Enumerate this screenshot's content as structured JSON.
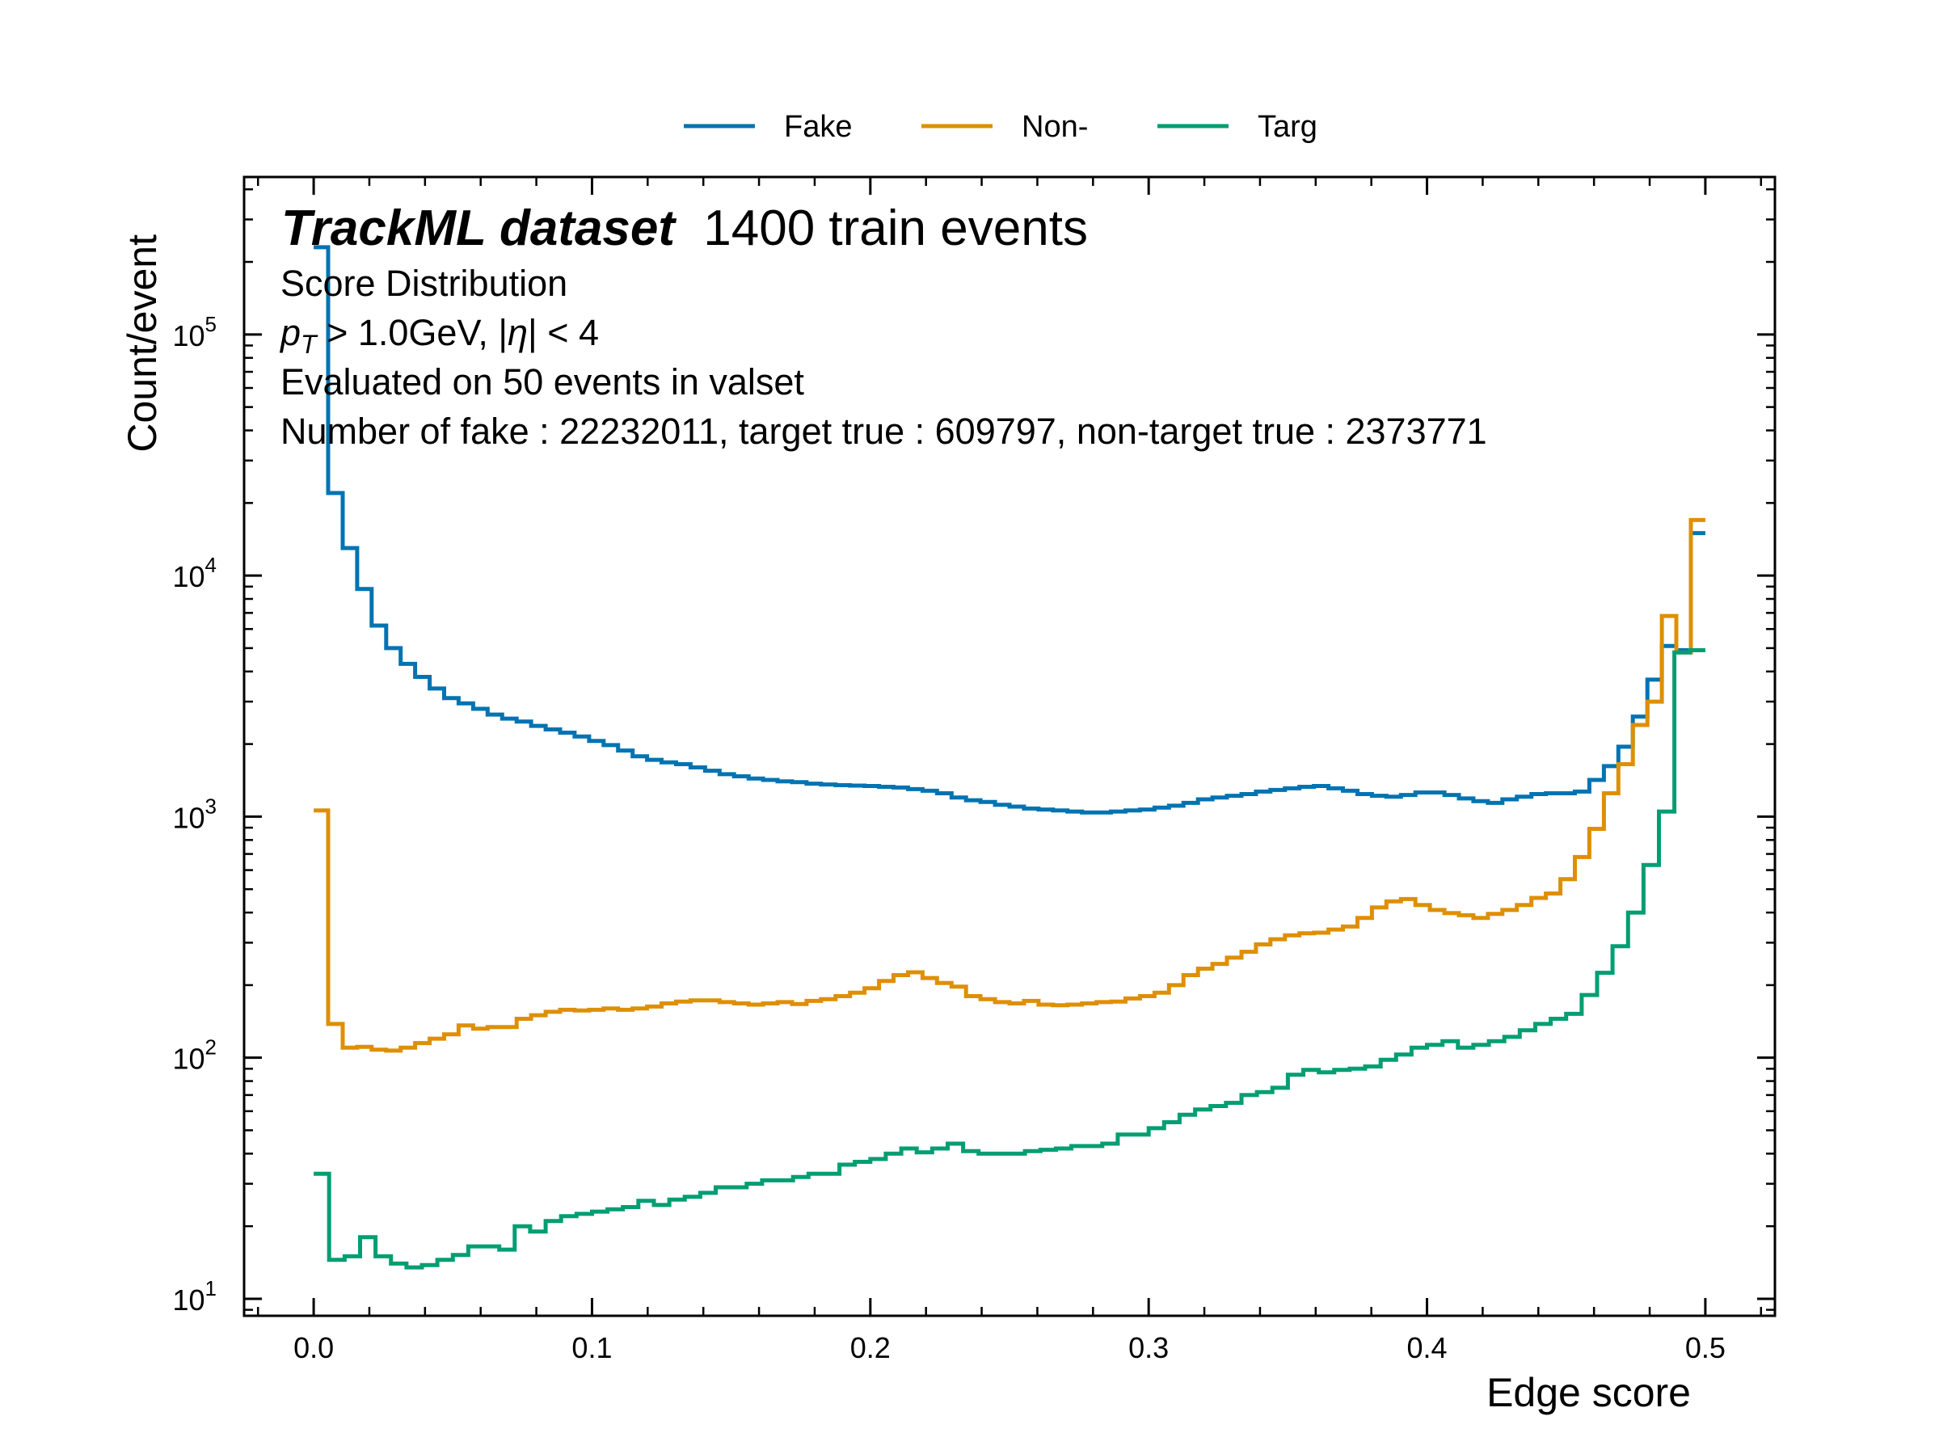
{
  "chart_data": {
    "type": "line",
    "title": "",
    "xlabel": "Edge score",
    "ylabel": "Count/event",
    "xlim": [
      -0.025,
      0.525
    ],
    "ylim": [
      8.5,
      450000
    ],
    "yscale": "log",
    "grid": false,
    "legend_position": "top-center",
    "x_ticks": [
      0.0,
      0.1,
      0.2,
      0.3,
      0.4,
      0.5
    ],
    "x_tick_labels": [
      "0.0",
      "0.1",
      "0.2",
      "0.3",
      "0.4",
      "0.5"
    ],
    "y_ticks": [
      10,
      100,
      1000,
      10000,
      100000
    ],
    "y_tick_labels": [
      {
        "base": "10",
        "exp": "1"
      },
      {
        "base": "10",
        "exp": "2"
      },
      {
        "base": "10",
        "exp": "3"
      },
      {
        "base": "10",
        "exp": "4"
      },
      {
        "base": "10",
        "exp": "5"
      }
    ],
    "annotation": {
      "brand": "TrackML dataset",
      "subtitle": "1400 train events",
      "line1": "Score Distribution",
      "line2_p": "p",
      "line2_sub": "T",
      "line2_rest": " > 1.0GeV, |",
      "line2_eta": "η",
      "line2_end": "| < 4",
      "line3": "Evaluated on 50 events in valset",
      "line4": "Number of fake : 22232011, target true : 609797, non-target true : 2373771"
    },
    "bin_start": 0.0,
    "bin_end": 0.5,
    "series": [
      {
        "name": "Fake",
        "color": "#0173b2",
        "values": [
          230000,
          22000,
          13000,
          8800,
          6200,
          5000,
          4300,
          3800,
          3400,
          3100,
          2950,
          2800,
          2650,
          2550,
          2480,
          2380,
          2300,
          2230,
          2150,
          2060,
          1980,
          1880,
          1780,
          1720,
          1680,
          1650,
          1600,
          1550,
          1500,
          1470,
          1440,
          1420,
          1400,
          1390,
          1370,
          1360,
          1350,
          1345,
          1340,
          1330,
          1320,
          1300,
          1280,
          1250,
          1200,
          1170,
          1150,
          1120,
          1100,
          1080,
          1070,
          1060,
          1050,
          1040,
          1040,
          1050,
          1060,
          1070,
          1090,
          1110,
          1140,
          1180,
          1200,
          1220,
          1240,
          1270,
          1290,
          1310,
          1330,
          1340,
          1310,
          1280,
          1240,
          1220,
          1210,
          1230,
          1260,
          1260,
          1230,
          1190,
          1160,
          1140,
          1180,
          1210,
          1240,
          1250,
          1250,
          1270,
          1420,
          1620,
          1950,
          2600,
          3700,
          5100,
          4900,
          15000
        ]
      },
      {
        "name": "Non-",
        "color": "#de8f05",
        "values": [
          1060,
          138,
          110,
          111,
          108,
          107,
          110,
          115,
          120,
          125,
          136,
          132,
          134,
          134,
          145,
          150,
          155,
          158,
          157,
          158,
          160,
          158,
          160,
          163,
          168,
          171,
          173,
          173,
          170,
          168,
          166,
          168,
          170,
          167,
          172,
          175,
          180,
          186,
          194,
          208,
          220,
          226,
          214,
          204,
          197,
          180,
          175,
          170,
          168,
          172,
          166,
          165,
          166,
          168,
          170,
          171,
          176,
          180,
          186,
          200,
          220,
          234,
          245,
          260,
          275,
          295,
          310,
          322,
          328,
          330,
          340,
          350,
          380,
          420,
          445,
          455,
          430,
          410,
          398,
          390,
          380,
          395,
          410,
          430,
          460,
          480,
          550,
          680,
          890,
          1250,
          1650,
          2400,
          3000,
          6800,
          4800,
          17000
        ]
      },
      {
        "name": "Targ",
        "color": "#029e73",
        "values": [
          33,
          14.5,
          15,
          18,
          15,
          14,
          13.5,
          13.8,
          14.5,
          15.2,
          16.5,
          16.5,
          16,
          20,
          19,
          21,
          22,
          22.5,
          23,
          23.5,
          24,
          25.5,
          24.5,
          25.8,
          26.5,
          27.5,
          29,
          29,
          30,
          31,
          31,
          32,
          33,
          33,
          36,
          37,
          38,
          40,
          42,
          40.5,
          42,
          44,
          41,
          40,
          40,
          40,
          41,
          41.5,
          42,
          43,
          43,
          44,
          48,
          48,
          51,
          54,
          58,
          61,
          63,
          65,
          70,
          72,
          75,
          85,
          89,
          87,
          89,
          90,
          92,
          98,
          103,
          110,
          113,
          117,
          110,
          113,
          117,
          122,
          130,
          138,
          145,
          152,
          182,
          225,
          290,
          400,
          630,
          1050,
          4800,
          4900
        ]
      }
    ]
  }
}
